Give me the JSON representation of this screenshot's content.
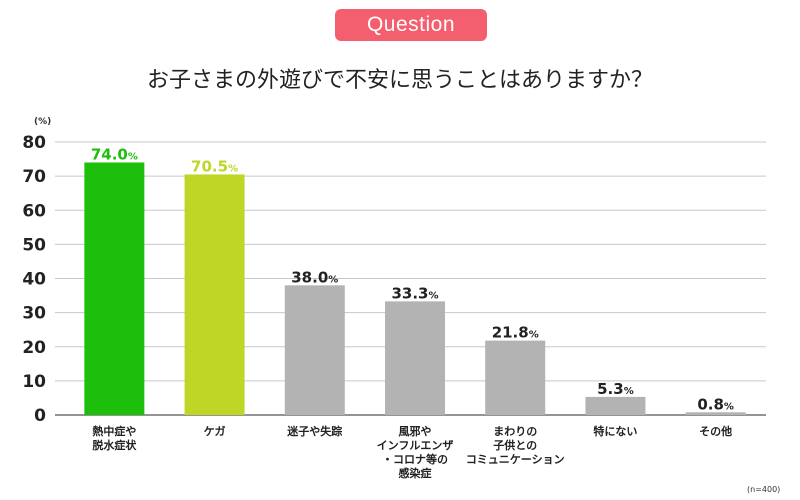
{
  "badge": "Question",
  "chart_data": {
    "type": "bar",
    "title": "お子さまの外遊びで不安に思うことはありますか？",
    "unit_label": "(%)",
    "note": "(n=400)",
    "ylim": [
      0,
      80
    ],
    "yticks": [
      0,
      10,
      20,
      30,
      40,
      50,
      60,
      70,
      80
    ],
    "categories": [
      "熱中症や\n脱水症状",
      "ケガ",
      "迷子や失踪",
      "風邪や\nインフルエンザ\n・コロナ等の\n感染症",
      "まわりの\n子供との\nコミュニケーション",
      "特にない",
      "その他"
    ],
    "values": [
      74.0,
      70.5,
      38.0,
      33.3,
      21.8,
      5.3,
      0.8
    ],
    "value_labels": [
      "74.0",
      "70.5",
      "38.0",
      "33.3",
      "21.8",
      "5.3",
      "0.8"
    ],
    "value_suffix": "%",
    "bar_colors": [
      "#1ebf0c",
      "#bed726",
      "#b3b3b3",
      "#b3b3b3",
      "#b3b3b3",
      "#b3b3b3",
      "#b3b3b3"
    ],
    "label_colors": [
      "#1ebf0c",
      "#bed726",
      "#222222",
      "#222222",
      "#222222",
      "#222222",
      "#222222"
    ],
    "grid": true
  }
}
